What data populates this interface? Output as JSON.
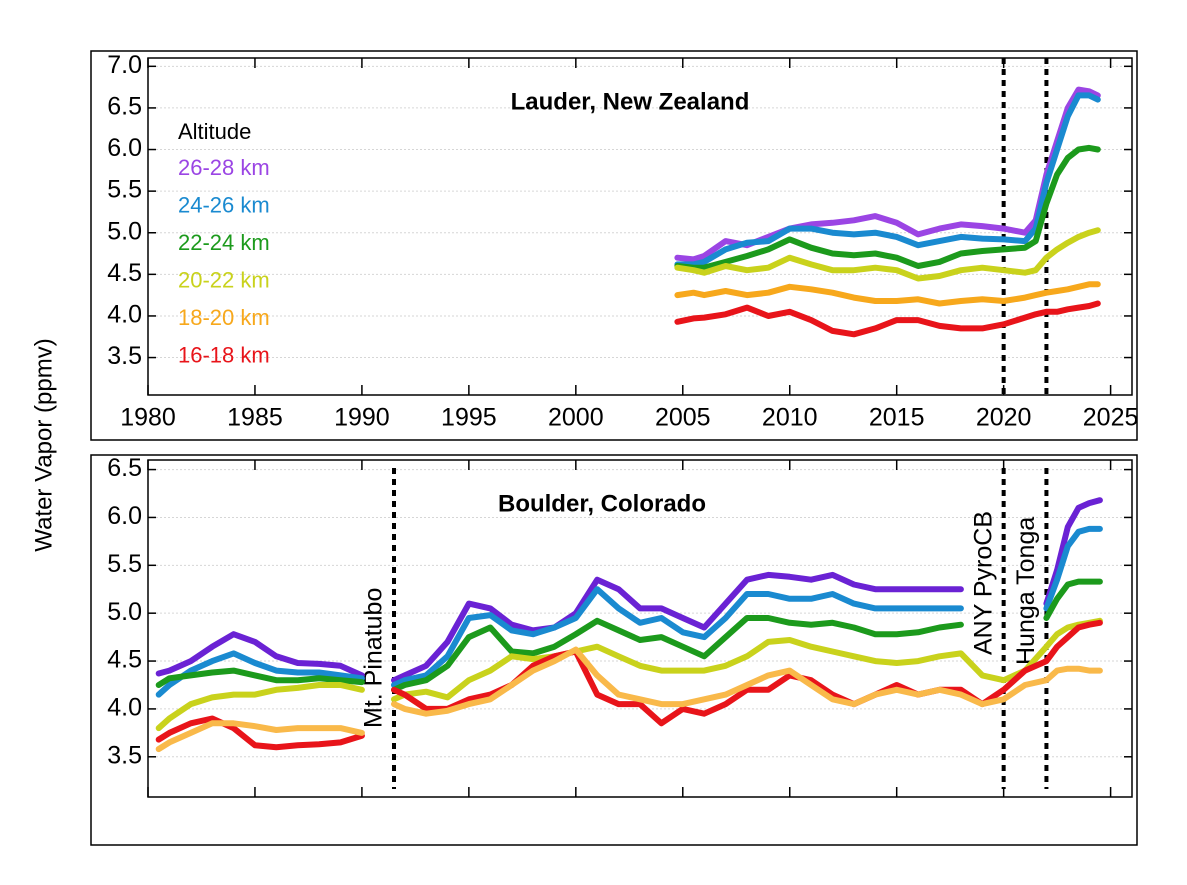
{
  "chart_data": [
    {
      "type": "line",
      "title": "Lauder, New Zealand",
      "ylabel": "Water Vapor (ppmv)",
      "legend_title": "Altitude",
      "legend": "upper left",
      "xlim": [
        1980,
        2026
      ],
      "ylim": [
        3.05,
        7.1
      ],
      "xticks": [
        1980,
        1985,
        1990,
        1995,
        2000,
        2005,
        2010,
        2015,
        2020,
        2025
      ],
      "yticks": [
        3.5,
        {
          "value": 4,
          "label": "4.0"
        },
        4.5,
        {
          "value": 5,
          "label": "5.0"
        },
        5.5,
        {
          "value": 6,
          "label": "6.0"
        },
        6.5,
        {
          "value": 7,
          "label": "7.0"
        }
      ],
      "vlines": [
        2020,
        2022
      ],
      "x": [
        2004.75,
        2005.5,
        2006,
        2007,
        2008,
        2009,
        2010,
        2011,
        2012,
        2013,
        2014,
        2015,
        2016,
        2017,
        2018,
        2019,
        2020,
        2021,
        2021.5,
        2022,
        2022.5,
        2023,
        2023.5,
        2024,
        2024.4
      ],
      "series": [
        {
          "name": "26-28 km",
          "color": "#9b45e4",
          "values": [
            4.7,
            4.68,
            4.72,
            4.9,
            4.85,
            4.95,
            5.05,
            5.1,
            5.12,
            5.15,
            5.2,
            5.12,
            4.98,
            5.05,
            5.1,
            5.08,
            5.05,
            5.0,
            5.15,
            5.7,
            6.1,
            6.5,
            6.72,
            6.7,
            6.65
          ]
        },
        {
          "name": "24-26 km",
          "color": "#1a8ad0",
          "values": [
            4.62,
            4.62,
            4.65,
            4.8,
            4.88,
            4.9,
            5.05,
            5.05,
            5.0,
            4.98,
            5.0,
            4.95,
            4.85,
            4.9,
            4.95,
            4.93,
            4.92,
            4.9,
            5.05,
            5.6,
            6.0,
            6.4,
            6.65,
            6.65,
            6.6
          ]
        },
        {
          "name": "22-24 km",
          "color": "#1c9a1c",
          "values": [
            4.6,
            4.58,
            4.58,
            4.65,
            4.72,
            4.8,
            4.92,
            4.82,
            4.75,
            4.73,
            4.75,
            4.7,
            4.6,
            4.65,
            4.75,
            4.78,
            4.8,
            4.82,
            4.9,
            5.35,
            5.7,
            5.9,
            6.0,
            6.02,
            6.0
          ]
        },
        {
          "name": "20-22 km",
          "color": "#c9d21c",
          "values": [
            4.58,
            4.55,
            4.52,
            4.6,
            4.55,
            4.58,
            4.7,
            4.62,
            4.55,
            4.55,
            4.58,
            4.55,
            4.45,
            4.48,
            4.55,
            4.58,
            4.55,
            4.52,
            4.55,
            4.7,
            4.8,
            4.88,
            4.95,
            5.0,
            5.03
          ]
        },
        {
          "name": "18-20 km",
          "color": "#f7a81c",
          "values": [
            4.25,
            4.28,
            4.25,
            4.3,
            4.25,
            4.28,
            4.35,
            4.32,
            4.28,
            4.22,
            4.18,
            4.18,
            4.2,
            4.15,
            4.18,
            4.2,
            4.18,
            4.22,
            4.25,
            4.28,
            4.3,
            4.32,
            4.35,
            4.38,
            4.38
          ]
        },
        {
          "name": "16-18 km",
          "color": "#e8141a",
          "values": [
            3.93,
            3.97,
            3.98,
            4.02,
            4.1,
            4.0,
            4.05,
            3.95,
            3.82,
            3.78,
            3.85,
            3.95,
            3.95,
            3.88,
            3.85,
            3.85,
            3.9,
            3.98,
            4.02,
            4.05,
            4.05,
            4.08,
            4.1,
            4.12,
            4.15
          ]
        }
      ]
    },
    {
      "type": "line",
      "title": "Boulder, Colorado",
      "xlim": [
        1980,
        2026
      ],
      "ylim": [
        3.08,
        6.6
      ],
      "yticks": [
        3.5,
        {
          "value": 4,
          "label": "4.0"
        },
        4.5,
        {
          "value": 5,
          "label": "5.0"
        },
        5.5,
        {
          "value": 6,
          "label": "6.0"
        },
        6.5
      ],
      "events": [
        {
          "x": 1991.5,
          "label": "Mt. Pinatubo"
        },
        {
          "x": 2020,
          "label": "ANY PyroCB"
        },
        {
          "x": 2022,
          "label": "Hunga Tonga"
        }
      ],
      "x": [
        1980.5,
        1981,
        1982,
        1983,
        1984,
        1985,
        1986,
        1987,
        1988,
        1989,
        1990,
        1990.75,
        1991.5,
        1992,
        1993,
        1994,
        1995,
        1996,
        1997,
        1998,
        1999,
        2000,
        2001,
        2002,
        2003,
        2004,
        2005,
        2006,
        2007,
        2008,
        2009,
        2010,
        2011,
        2012,
        2013,
        2014,
        2015,
        2016,
        2017,
        2018,
        2019,
        2020,
        2021,
        2022,
        2022.5,
        2023,
        2023.5,
        2024,
        2024.5
      ],
      "series": [
        {
          "color": "#6a22d4",
          "values": [
            4.37,
            4.4,
            4.5,
            4.65,
            4.78,
            4.7,
            4.55,
            4.48,
            4.47,
            4.45,
            4.35,
            null,
            4.3,
            4.35,
            4.45,
            4.7,
            5.1,
            5.05,
            4.88,
            4.82,
            4.85,
            5.0,
            5.35,
            5.25,
            5.05,
            5.05,
            4.95,
            4.85,
            5.1,
            5.35,
            5.4,
            5.38,
            5.35,
            5.4,
            5.3,
            5.25,
            5.25,
            5.25,
            5.25,
            5.25,
            null,
            null,
            null,
            5.1,
            5.45,
            5.9,
            6.1,
            6.15,
            6.18
          ]
        },
        {
          "color": "#1a8ad0",
          "values": [
            4.15,
            4.25,
            4.4,
            4.5,
            4.58,
            4.48,
            4.4,
            4.38,
            4.38,
            4.35,
            4.32,
            null,
            4.25,
            4.3,
            4.35,
            4.55,
            4.95,
            4.98,
            4.82,
            4.78,
            4.85,
            4.95,
            5.25,
            5.05,
            4.9,
            4.95,
            4.8,
            4.75,
            4.95,
            5.2,
            5.2,
            5.15,
            5.15,
            5.2,
            5.1,
            5.05,
            5.05,
            5.05,
            5.05,
            5.05,
            null,
            null,
            null,
            5.05,
            5.35,
            5.7,
            5.85,
            5.88,
            5.88
          ]
        },
        {
          "color": "#1c9a1c",
          "values": [
            4.25,
            4.32,
            4.35,
            4.38,
            4.4,
            4.35,
            4.3,
            4.3,
            4.32,
            4.3,
            4.28,
            null,
            4.2,
            4.25,
            4.3,
            4.45,
            4.75,
            4.85,
            4.6,
            4.58,
            4.65,
            4.78,
            4.92,
            4.82,
            4.72,
            4.75,
            4.65,
            4.55,
            4.75,
            4.95,
            4.95,
            4.9,
            4.88,
            4.9,
            4.85,
            4.78,
            4.78,
            4.8,
            4.85,
            4.88,
            null,
            null,
            null,
            4.95,
            5.15,
            5.3,
            5.33,
            5.33,
            5.33
          ]
        },
        {
          "color": "#c9d21c",
          "values": [
            3.8,
            3.9,
            4.05,
            4.12,
            4.15,
            4.15,
            4.2,
            4.22,
            4.25,
            4.25,
            4.2,
            null,
            4.1,
            4.15,
            4.18,
            4.12,
            4.3,
            4.4,
            4.55,
            4.52,
            4.55,
            4.6,
            4.65,
            4.55,
            4.45,
            4.4,
            4.4,
            4.4,
            4.45,
            4.55,
            4.7,
            4.72,
            4.65,
            4.6,
            4.55,
            4.5,
            4.48,
            4.5,
            4.55,
            4.58,
            4.35,
            4.3,
            4.4,
            4.65,
            4.78,
            4.85,
            4.88,
            4.9,
            4.92
          ]
        },
        {
          "color": "#e8141a",
          "values": [
            3.68,
            3.75,
            3.85,
            3.9,
            3.8,
            3.62,
            3.6,
            3.62,
            3.63,
            3.65,
            3.72,
            null,
            4.2,
            4.15,
            4.0,
            4.0,
            4.1,
            4.15,
            4.25,
            4.45,
            4.55,
            4.6,
            4.15,
            4.05,
            4.05,
            3.85,
            4.0,
            3.95,
            4.05,
            4.2,
            4.2,
            4.35,
            4.3,
            4.15,
            4.05,
            4.15,
            4.25,
            4.15,
            4.2,
            4.2,
            4.05,
            4.2,
            4.4,
            4.5,
            4.65,
            4.75,
            4.85,
            4.88,
            4.9
          ]
        },
        {
          "color": "#f9b94a",
          "values": [
            3.58,
            3.65,
            3.75,
            3.85,
            3.85,
            3.82,
            3.78,
            3.8,
            3.8,
            3.8,
            3.75,
            null,
            4.05,
            4.0,
            3.95,
            3.98,
            4.05,
            4.1,
            4.25,
            4.4,
            4.5,
            4.62,
            4.35,
            4.15,
            4.1,
            4.05,
            4.05,
            4.1,
            4.15,
            4.25,
            4.35,
            4.4,
            4.25,
            4.1,
            4.05,
            4.15,
            4.2,
            4.15,
            4.2,
            4.15,
            4.05,
            4.1,
            4.25,
            4.3,
            4.4,
            4.42,
            4.42,
            4.4,
            4.4
          ]
        }
      ]
    }
  ]
}
